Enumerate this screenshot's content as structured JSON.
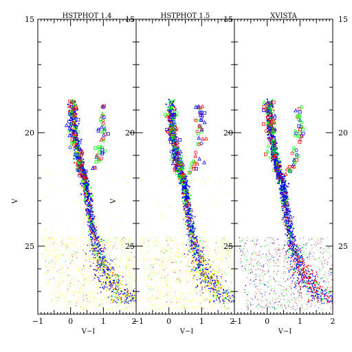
{
  "chart_data": {
    "type": "scatter",
    "x_ticks": [
      "−1",
      "0",
      "1",
      "2"
    ],
    "y_ticks": [
      "15",
      "20",
      "25"
    ],
    "xlim": [
      -1,
      2
    ],
    "ylim": [
      28,
      15
    ],
    "y_inverted": true,
    "colors": {
      "red": "#ff0000",
      "green": "#00ff00",
      "blue": "#0000ff",
      "yellow": "#ffff00",
      "black": "#000000"
    },
    "panels": [
      {
        "title": "HSTPHOT 1.4",
        "xlabel": "V−I",
        "ylabel": "V",
        "faint_color": "yellow"
      },
      {
        "title": "HSTPHOT 1.5",
        "xlabel": "V−I",
        "ylabel": "V",
        "faint_color": "yellow"
      },
      {
        "title": "XVISTA",
        "xlabel": "V−I",
        "ylabel": "",
        "faint_color": "mixed"
      }
    ],
    "distribution": {
      "main_sequence_ridge": [
        [
          0.05,
          19.0
        ],
        [
          0.1,
          20.0
        ],
        [
          0.25,
          21.2
        ],
        [
          0.45,
          22.3
        ],
        [
          0.55,
          23.3
        ],
        [
          0.65,
          24.2
        ],
        [
          0.78,
          25.0
        ],
        [
          0.95,
          25.8
        ],
        [
          1.15,
          26.4
        ],
        [
          1.4,
          26.9
        ],
        [
          1.7,
          27.2
        ]
      ],
      "red_branch": [
        [
          0.95,
          19.0
        ],
        [
          1.0,
          20.2
        ],
        [
          0.85,
          21.2
        ],
        [
          0.65,
          21.8
        ]
      ],
      "bright_limit": 18.4,
      "faint_limit": 27.6
    }
  }
}
